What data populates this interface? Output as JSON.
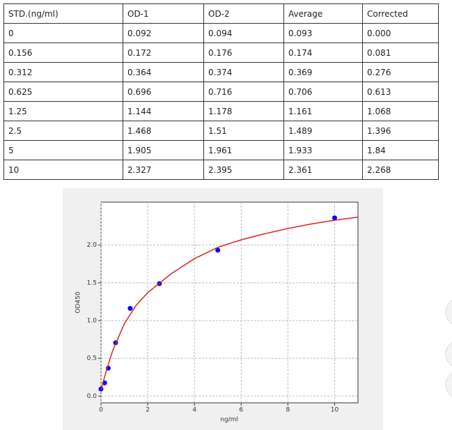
{
  "table": {
    "header": [
      "STD.(ng/ml)",
      "OD-1",
      "OD-2",
      "Average",
      "Corrected"
    ],
    "rows": [
      [
        "0",
        "0.092",
        "0.094",
        "0.093",
        "0.000"
      ],
      [
        "0.156",
        "0.172",
        "0.176",
        "0.174",
        "0.081"
      ],
      [
        "0.312",
        "0.364",
        "0.374",
        "0.369",
        "0.276"
      ],
      [
        "0.625",
        "0.696",
        "0.716",
        "0.706",
        "0.613"
      ],
      [
        "1.25",
        "1.144",
        "1.178",
        "1.161",
        "1.068"
      ],
      [
        "2.5",
        "1.468",
        "1.51",
        "1.489",
        "1.396"
      ],
      [
        "5",
        "1.905",
        "1.961",
        "1.933",
        "1.84"
      ],
      [
        "10",
        "2.327",
        "2.395",
        "2.361",
        "2.268"
      ]
    ]
  },
  "chart_data": {
    "type": "scatter",
    "x_label": "ng/ml",
    "y_label": "OD450",
    "xlim": [
      0,
      11
    ],
    "ylim": [
      -0.09,
      2.57
    ],
    "xticks": [
      0,
      2,
      4,
      6,
      8,
      10
    ],
    "yticks": [
      {
        "value": 0,
        "label": "0.0"
      },
      0.5,
      {
        "value": 1,
        "label": "1.0"
      },
      1.5,
      {
        "value": 2,
        "label": "2.0"
      }
    ],
    "grid": true,
    "series": [
      {
        "color": "#0000ff",
        "x": [
          0,
          0.156,
          0.312,
          0.625,
          1.25,
          2.5,
          5,
          10
        ],
        "values": [
          0.093,
          0.174,
          0.369,
          0.706,
          1.161,
          1.489,
          1.933,
          2.361
        ]
      },
      {
        "type": "line",
        "color": "#dd2222",
        "x": [
          0,
          0.25,
          0.5,
          1,
          1.5,
          2,
          3,
          4,
          5,
          6,
          7,
          8,
          9,
          10,
          11
        ],
        "values": [
          0.08,
          0.36,
          0.6,
          0.96,
          1.2,
          1.37,
          1.62,
          1.82,
          1.97,
          2.07,
          2.15,
          2.22,
          2.28,
          2.33,
          2.37
        ]
      }
    ]
  }
}
